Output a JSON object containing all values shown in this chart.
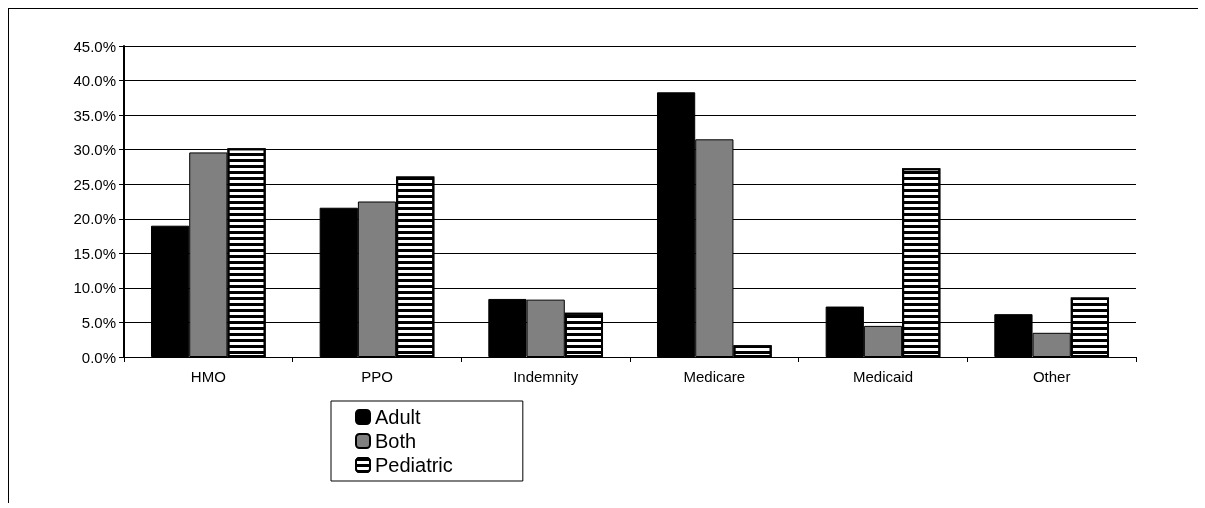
{
  "chart_data": {
    "type": "bar",
    "categories": [
      "HMO",
      "PPO",
      "Indemnity",
      "Medicare",
      "Medicaid",
      "Other"
    ],
    "series": [
      {
        "name": "Adult",
        "color": "#000000",
        "values": [
          19.0,
          21.6,
          8.4,
          38.3,
          7.3,
          6.2
        ]
      },
      {
        "name": "Both",
        "color": "#808080",
        "values": [
          29.6,
          22.5,
          8.3,
          31.5,
          4.5,
          3.5
        ]
      },
      {
        "name": "Pediatric",
        "color": "#ffffff",
        "values": [
          30.2,
          26.1,
          6.4,
          1.7,
          27.3,
          8.6
        ]
      }
    ],
    "ylim": [
      0,
      45
    ],
    "yticks": [
      {
        "value": 0,
        "label": "0.0%"
      },
      {
        "value": 5,
        "label": "5.0%"
      },
      {
        "value": 10,
        "label": "10.0%"
      },
      {
        "value": 15,
        "label": "15.0%"
      },
      {
        "value": 20,
        "label": "20.0%"
      },
      {
        "value": 25,
        "label": "25.0%"
      },
      {
        "value": 30,
        "label": "30.0%"
      },
      {
        "value": 35,
        "label": "35.0%"
      },
      {
        "value": 40,
        "label": "40.0%"
      },
      {
        "value": 45,
        "label": "45.0%"
      }
    ],
    "grid": "y",
    "legend": "bottom"
  }
}
